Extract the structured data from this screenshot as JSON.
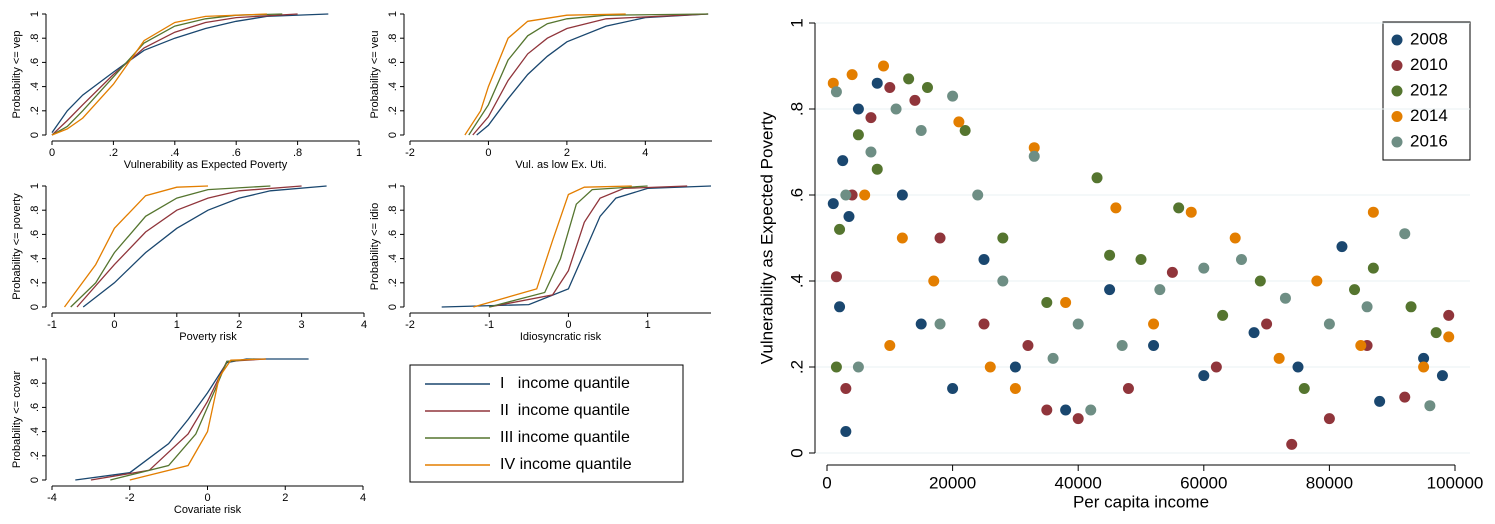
{
  "chart_data": [
    {
      "type": "line",
      "x_label": "Vulnerability as Expected Poverty",
      "y_label": "Probability <= vep",
      "xlim": [
        0,
        1
      ],
      "ylim": [
        0,
        1
      ],
      "xticks": [
        0,
        {
          "value": 0.2,
          "label": ".2"
        },
        {
          "value": 0.4,
          "label": ".4"
        },
        {
          "value": 0.6,
          "label": ".6"
        },
        {
          "value": 0.8,
          "label": ".8"
        },
        1
      ],
      "yticks": [
        0,
        {
          "value": 0.2,
          "label": ".2"
        },
        {
          "value": 0.4,
          "label": ".4"
        },
        {
          "value": 0.6,
          "label": ".6"
        },
        {
          "value": 0.8,
          "label": ".8"
        },
        1
      ],
      "series": [
        {
          "color": "#1a476f",
          "x": [
            0,
            0.05,
            0.1,
            0.2,
            0.3,
            0.4,
            0.5,
            0.6,
            0.7,
            0.9
          ],
          "values": [
            0.02,
            0.2,
            0.33,
            0.52,
            0.7,
            0.8,
            0.88,
            0.94,
            0.98,
            1
          ]
        },
        {
          "color": "#90353b",
          "x": [
            0,
            0.05,
            0.1,
            0.2,
            0.3,
            0.4,
            0.5,
            0.6,
            0.8
          ],
          "values": [
            0,
            0.12,
            0.25,
            0.5,
            0.72,
            0.85,
            0.93,
            0.97,
            1
          ]
        },
        {
          "color": "#55752f",
          "x": [
            0,
            0.05,
            0.1,
            0.2,
            0.3,
            0.4,
            0.5,
            0.6,
            0.75
          ],
          "values": [
            0,
            0.07,
            0.2,
            0.48,
            0.76,
            0.9,
            0.96,
            0.99,
            1
          ]
        },
        {
          "color": "#e37e00",
          "x": [
            0,
            0.05,
            0.1,
            0.2,
            0.3,
            0.4,
            0.5,
            0.7
          ],
          "values": [
            0,
            0.05,
            0.14,
            0.42,
            0.78,
            0.93,
            0.98,
            1
          ]
        }
      ]
    },
    {
      "type": "line",
      "x_label": "Vul. as low Ex. Uti.",
      "y_label": "Probability <= veu",
      "xlim": [
        -2,
        5.7
      ],
      "ylim": [
        0,
        1
      ],
      "xticks": [
        -2,
        0,
        2,
        4
      ],
      "yticks": [
        0,
        {
          "value": 0.2,
          "label": ".2"
        },
        {
          "value": 0.4,
          "label": ".4"
        },
        {
          "value": 0.6,
          "label": ".6"
        },
        {
          "value": 0.8,
          "label": ".8"
        },
        1
      ],
      "series": [
        {
          "color": "#1a476f",
          "x": [
            -0.3,
            0,
            0.5,
            1,
            1.5,
            2,
            3,
            4,
            5.6
          ],
          "values": [
            0,
            0.08,
            0.3,
            0.5,
            0.65,
            0.77,
            0.9,
            0.97,
            1
          ]
        },
        {
          "color": "#90353b",
          "x": [
            -0.4,
            0,
            0.5,
            1,
            1.5,
            2,
            3,
            5.6
          ],
          "values": [
            0,
            0.15,
            0.45,
            0.67,
            0.8,
            0.88,
            0.96,
            1
          ]
        },
        {
          "color": "#55752f",
          "x": [
            -0.5,
            0,
            0.5,
            1,
            1.5,
            2,
            3,
            5.6
          ],
          "values": [
            0,
            0.25,
            0.62,
            0.82,
            0.92,
            0.96,
            0.99,
            1
          ]
        },
        {
          "color": "#e37e00",
          "x": [
            -0.6,
            -0.2,
            0,
            0.5,
            1,
            2,
            3.5
          ],
          "values": [
            0,
            0.2,
            0.4,
            0.8,
            0.94,
            0.99,
            1
          ]
        }
      ]
    },
    {
      "type": "line",
      "x_label": "Poverty risk",
      "y_label": "Probability <= poverty",
      "xlim": [
        -1,
        4
      ],
      "ylim": [
        0,
        1
      ],
      "xticks": [
        -1,
        0,
        1,
        2,
        3,
        4
      ],
      "yticks": [
        0,
        {
          "value": 0.2,
          "label": ".2"
        },
        {
          "value": 0.4,
          "label": ".4"
        },
        {
          "value": 0.6,
          "label": ".6"
        },
        {
          "value": 0.8,
          "label": ".8"
        },
        1
      ],
      "series": [
        {
          "color": "#1a476f",
          "x": [
            -0.5,
            0,
            0.5,
            1,
            1.5,
            2,
            2.5,
            3.4
          ],
          "values": [
            0,
            0.2,
            0.45,
            0.65,
            0.8,
            0.9,
            0.96,
            1
          ]
        },
        {
          "color": "#90353b",
          "x": [
            -0.6,
            0,
            0.5,
            1,
            1.5,
            2,
            3
          ],
          "values": [
            0,
            0.35,
            0.62,
            0.8,
            0.9,
            0.96,
            1
          ]
        },
        {
          "color": "#55752f",
          "x": [
            -0.7,
            -0.3,
            0,
            0.5,
            1,
            1.5,
            2.5
          ],
          "values": [
            0,
            0.2,
            0.45,
            0.75,
            0.9,
            0.97,
            1
          ]
        },
        {
          "color": "#e37e00",
          "x": [
            -0.8,
            -0.3,
            0,
            0.5,
            1,
            1.5
          ],
          "values": [
            0,
            0.35,
            0.65,
            0.92,
            0.99,
            1
          ]
        }
      ]
    },
    {
      "type": "line",
      "x_label": "Idiosyncratic risk",
      "y_label": "Probability <= idio",
      "xlim": [
        -2,
        1.8
      ],
      "ylim": [
        0,
        1
      ],
      "xticks": [
        -2,
        -1,
        0,
        1
      ],
      "yticks": [
        0,
        {
          "value": 0.2,
          "label": ".2"
        },
        {
          "value": 0.4,
          "label": ".4"
        },
        {
          "value": 0.6,
          "label": ".6"
        },
        {
          "value": 0.8,
          "label": ".8"
        },
        1
      ],
      "series": [
        {
          "color": "#1a476f",
          "x": [
            -1.6,
            -0.5,
            0,
            0.2,
            0.4,
            0.6,
            1,
            1.8
          ],
          "values": [
            0,
            0.02,
            0.15,
            0.45,
            0.75,
            0.9,
            0.98,
            1
          ]
        },
        {
          "color": "#90353b",
          "x": [
            -1,
            -0.2,
            0,
            0.2,
            0.4,
            0.7,
            1.5
          ],
          "values": [
            0,
            0.1,
            0.3,
            0.7,
            0.9,
            0.98,
            1
          ]
        },
        {
          "color": "#55752f",
          "x": [
            -1,
            -0.3,
            -0.1,
            0.1,
            0.3,
            1
          ],
          "values": [
            0,
            0.12,
            0.4,
            0.85,
            0.97,
            1
          ]
        },
        {
          "color": "#e37e00",
          "x": [
            -1.2,
            -0.4,
            -0.2,
            0,
            0.2,
            0.8
          ],
          "values": [
            0,
            0.15,
            0.55,
            0.93,
            0.99,
            1
          ]
        }
      ]
    },
    {
      "type": "line",
      "x_label": "Covariate risk",
      "y_label": "Probability <= covar",
      "xlim": [
        -4,
        4
      ],
      "ylim": [
        0,
        1
      ],
      "xticks": [
        -4,
        -2,
        0,
        2,
        4
      ],
      "yticks": [
        0,
        {
          "value": 0.2,
          "label": ".2"
        },
        {
          "value": 0.4,
          "label": ".4"
        },
        {
          "value": 0.6,
          "label": ".6"
        },
        {
          "value": 0.8,
          "label": ".8"
        },
        1
      ],
      "series": [
        {
          "color": "#1a476f",
          "x": [
            -3.4,
            -2,
            -1,
            -0.5,
            0,
            0.5,
            1,
            2.6
          ],
          "values": [
            0,
            0.06,
            0.3,
            0.5,
            0.72,
            0.97,
            1,
            1
          ]
        },
        {
          "color": "#90353b",
          "x": [
            -3,
            -1.5,
            -0.5,
            0,
            0.5,
            1.5
          ],
          "values": [
            0,
            0.08,
            0.38,
            0.65,
            0.98,
            1
          ]
        },
        {
          "color": "#55752f",
          "x": [
            -2.5,
            -1,
            -0.3,
            0.2,
            0.5,
            1.2
          ],
          "values": [
            0,
            0.12,
            0.38,
            0.75,
            0.98,
            1
          ]
        },
        {
          "color": "#e37e00",
          "x": [
            -2,
            -0.5,
            0,
            0.3,
            0.6,
            1.5
          ],
          "values": [
            0,
            0.12,
            0.4,
            0.85,
            0.99,
            1
          ]
        }
      ]
    },
    {
      "type": "scatter",
      "x_label": "Per capita income",
      "y_label": "Vulnerability as Expected Poverty",
      "xlim": [
        0,
        100000
      ],
      "ylim": [
        0,
        1
      ],
      "grid": true,
      "legend_position": "top-right",
      "xticks": [
        0,
        20000,
        40000,
        60000,
        80000,
        100000
      ],
      "yticks": [
        0,
        {
          "value": 0.2,
          "label": ".2"
        },
        {
          "value": 0.4,
          "label": ".4"
        },
        {
          "value": 0.6,
          "label": ".6"
        },
        {
          "value": 0.8,
          "label": ".8"
        },
        1
      ],
      "series": [
        {
          "name": "2008",
          "color": "#1a476f",
          "x": [
            1000,
            2500,
            3500,
            5000,
            8000,
            12000,
            15000,
            20000,
            25000,
            30000,
            38000,
            45000,
            52000,
            60000,
            68000,
            75000,
            82000,
            88000,
            95000,
            98000,
            2000,
            3000
          ],
          "values": [
            0.58,
            0.68,
            0.55,
            0.8,
            0.86,
            0.6,
            0.3,
            0.15,
            0.45,
            0.2,
            0.1,
            0.38,
            0.25,
            0.18,
            0.28,
            0.2,
            0.48,
            0.12,
            0.22,
            0.18,
            0.34,
            0.05
          ]
        },
        {
          "name": "2010",
          "color": "#90353b",
          "x": [
            1500,
            4000,
            7000,
            10000,
            14000,
            18000,
            25000,
            32000,
            40000,
            48000,
            55000,
            62000,
            70000,
            74000,
            80000,
            86000,
            92000,
            99000,
            3000,
            35000
          ],
          "values": [
            0.41,
            0.6,
            0.78,
            0.85,
            0.82,
            0.5,
            0.3,
            0.25,
            0.08,
            0.15,
            0.42,
            0.2,
            0.3,
            0.02,
            0.08,
            0.25,
            0.13,
            0.32,
            0.15,
            0.1
          ]
        },
        {
          "name": "2012",
          "color": "#55752f",
          "x": [
            2000,
            5000,
            8000,
            13000,
            16000,
            22000,
            28000,
            35000,
            43000,
            50000,
            56000,
            63000,
            69000,
            76000,
            84000,
            87000,
            93000,
            97000,
            1500,
            45000
          ],
          "values": [
            0.52,
            0.74,
            0.66,
            0.87,
            0.85,
            0.75,
            0.5,
            0.35,
            0.64,
            0.45,
            0.57,
            0.32,
            0.4,
            0.15,
            0.38,
            0.43,
            0.34,
            0.28,
            0.2,
            0.46
          ]
        },
        {
          "name": "2014",
          "color": "#e37e00",
          "x": [
            1000,
            4000,
            6000,
            9000,
            12000,
            17000,
            21000,
            26000,
            33000,
            38000,
            46000,
            52000,
            58000,
            65000,
            72000,
            78000,
            85000,
            87000,
            95000,
            99000,
            10000,
            30000
          ],
          "values": [
            0.86,
            0.88,
            0.6,
            0.9,
            0.5,
            0.4,
            0.77,
            0.2,
            0.71,
            0.35,
            0.57,
            0.3,
            0.56,
            0.5,
            0.22,
            0.4,
            0.25,
            0.56,
            0.2,
            0.27,
            0.25,
            0.15
          ]
        },
        {
          "name": "2016",
          "color": "#6e8e84",
          "x": [
            1500,
            3000,
            7000,
            11000,
            15000,
            20000,
            24000,
            28000,
            33000,
            40000,
            47000,
            53000,
            60000,
            66000,
            73000,
            80000,
            86000,
            92000,
            96000,
            5000,
            18000,
            36000,
            42000
          ],
          "values": [
            0.84,
            0.6,
            0.7,
            0.8,
            0.75,
            0.83,
            0.6,
            0.4,
            0.69,
            0.3,
            0.25,
            0.38,
            0.43,
            0.45,
            0.36,
            0.3,
            0.34,
            0.51,
            0.11,
            0.2,
            0.3,
            0.22,
            0.1
          ]
        }
      ]
    }
  ],
  "legend": {
    "entries": [
      {
        "label": "I   income quantile",
        "color": "#1a476f"
      },
      {
        "label": "II  income quantile",
        "color": "#90353b"
      },
      {
        "label": "III income quantile",
        "color": "#55752f"
      },
      {
        "label": "IV income quantile",
        "color": "#e37e00"
      }
    ]
  }
}
